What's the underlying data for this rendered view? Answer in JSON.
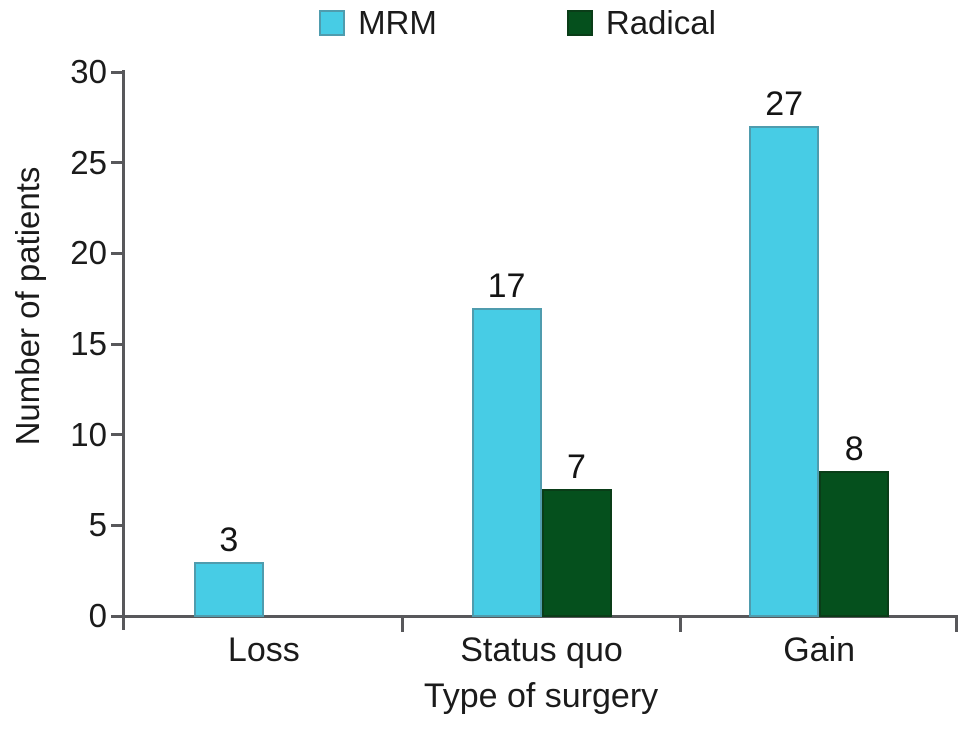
{
  "chart_data": {
    "type": "bar",
    "title": "",
    "categories": [
      "Loss",
      "Status quo",
      "Gain"
    ],
    "series": [
      {
        "name": "MRM",
        "color": "#47CCE5",
        "border_color": "#4F9CAE",
        "values": [
          3,
          17,
          27
        ]
      },
      {
        "name": "Radical",
        "color": "#05501D",
        "border_color": "#0A3D18",
        "values": [
          0,
          7,
          8
        ]
      }
    ],
    "bar_value_labels": [
      [
        "3",
        "17",
        "27"
      ],
      [
        "",
        "7",
        "8"
      ]
    ],
    "xlabel": "Type of surgery",
    "ylabel": "Number of patients",
    "ylim": [
      0,
      30
    ],
    "yticks": [
      0,
      5,
      10,
      15,
      20,
      25,
      30
    ],
    "legend_position": "top",
    "grid": false,
    "bar_labels_shown": true,
    "axis_color": "#58585B",
    "text_color": "#1B1B1B",
    "background_color": "#FFFFFF"
  }
}
